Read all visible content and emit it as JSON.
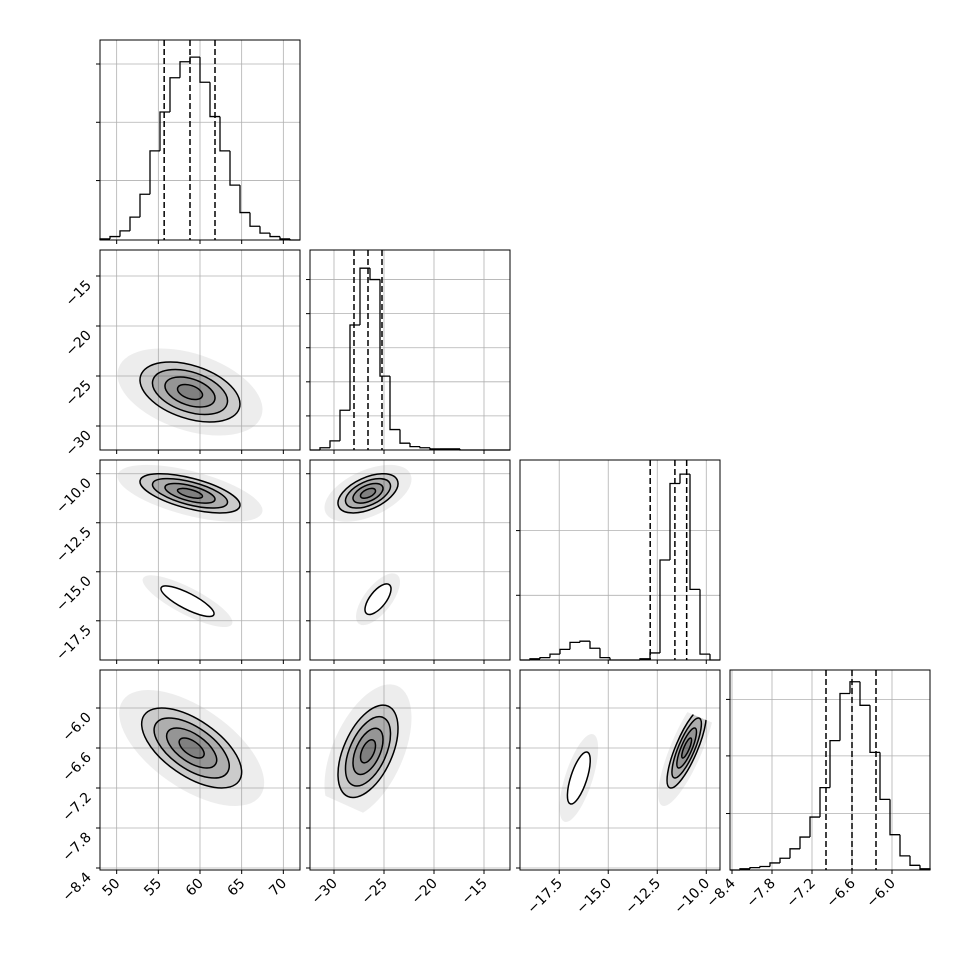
{
  "chart_data": {
    "type": "corner",
    "params": [
      {
        "lim": [
          48,
          72
        ],
        "ticks": [
          50,
          55,
          60,
          65,
          70
        ],
        "bins": [
          48,
          49.2,
          50.4,
          51.6,
          52.8,
          54,
          55.2,
          56.4,
          57.6,
          58.8,
          60,
          61.2,
          62.4,
          63.6,
          64.8,
          66,
          67.2,
          68.4,
          69.6,
          70.8,
          72
        ],
        "counts": [
          1,
          3,
          8,
          20,
          40,
          78,
          112,
          142,
          156,
          160,
          138,
          108,
          78,
          48,
          24,
          12,
          6,
          3,
          1,
          0
        ],
        "hist_ylim": [
          0,
          175
        ],
        "hist_yticks": [
          52,
          103,
          154
        ],
        "quantiles": [
          55.7,
          58.8,
          61.8
        ]
      },
      {
        "lim": [
          -32.4,
          -12.4
        ],
        "ticks": [
          {
            "value": -30,
            "label": "−30"
          },
          {
            "value": -25,
            "label": "−25"
          },
          {
            "value": -20,
            "label": "−20"
          },
          {
            "value": -15,
            "label": "−15"
          }
        ],
        "bins": [
          -32.4,
          -31.4,
          -30.4,
          -29.4,
          -28.4,
          -27.4,
          -26.4,
          -25.4,
          -24.4,
          -23.4,
          -22.4,
          -21.4,
          -20.4,
          -19.4,
          -18.4,
          -17.4,
          -16.4,
          -15.4,
          -14.4,
          -13.4,
          -12.4
        ],
        "counts": [
          0,
          2,
          8,
          35,
          110,
          160,
          150,
          65,
          18,
          6,
          3,
          2,
          1,
          1,
          1,
          0,
          0,
          0,
          0,
          0
        ],
        "hist_ylim": [
          0,
          176
        ],
        "hist_yticks": [
          30,
          60,
          90,
          120,
          150
        ],
        "quantiles": [
          -28.0,
          -26.6,
          -25.2
        ]
      },
      {
        "lim": [
          -19.5,
          -9.3
        ],
        "ticks": [
          {
            "value": -17.5,
            "label": "−17.5"
          },
          {
            "value": -15,
            "label": "−15.0"
          },
          {
            "value": -12.5,
            "label": "−12.5"
          },
          {
            "value": -10,
            "label": "−10.0"
          }
        ],
        "bins": [
          -19.5,
          -18.99,
          -18.48,
          -17.97,
          -17.46,
          -16.95,
          -16.44,
          -15.93,
          -15.42,
          -14.91,
          -14.4,
          -13.89,
          -13.38,
          -12.87,
          -12.36,
          -11.85,
          -11.34,
          -10.83,
          -10.32,
          -9.81,
          -9.3
        ],
        "counts": [
          0,
          1,
          2,
          5,
          9,
          15,
          16,
          10,
          2,
          0,
          0,
          0,
          1,
          6,
          85,
          150,
          158,
          60,
          5,
          0
        ],
        "hist_ylim": [
          0,
          170
        ],
        "hist_yticks": [
          55,
          110
        ],
        "quantiles": [
          -12.86,
          -11.6,
          -11.0
        ]
      },
      {
        "lim": [
          -8.43,
          -5.43
        ],
        "ticks": [
          {
            "value": -8.4,
            "label": "−8.4"
          },
          {
            "value": -7.8,
            "label": "−7.8"
          },
          {
            "value": -7.2,
            "label": "−7.2"
          },
          {
            "value": -6.6,
            "label": "−6.6"
          },
          {
            "value": -6.0,
            "label": "−6.0"
          }
        ],
        "bins": [
          -8.43,
          -8.28,
          -8.13,
          -7.98,
          -7.83,
          -7.68,
          -7.53,
          -7.38,
          -7.23,
          -7.08,
          -6.93,
          -6.78,
          -6.63,
          -6.48,
          -6.33,
          -6.18,
          -6.03,
          -5.88,
          -5.73,
          -5.58,
          -5.43
        ],
        "counts": [
          0,
          1,
          2,
          3,
          6,
          10,
          18,
          28,
          45,
          70,
          110,
          150,
          160,
          140,
          100,
          60,
          30,
          12,
          4,
          1
        ],
        "hist_ylim": [
          0,
          170
        ],
        "hist_yticks": [
          48,
          97,
          145
        ],
        "quantiles": [
          -6.99,
          -6.6,
          -6.24
        ]
      }
    ],
    "pairs": [
      {
        "x": 0,
        "y": 1,
        "clusters": [
          {
            "center": [
              58.8,
              -26.6
            ],
            "cov": [
              9,
              -1.8,
              2.25
            ],
            "levels": [
              0.5,
              1,
              1.5,
              2
            ]
          }
        ]
      },
      {
        "x": 0,
        "y": 2,
        "clusters": [
          {
            "center": [
              58.8,
              -11.0
            ],
            "cov": [
              9,
              -0.9,
              0.25
            ],
            "levels": [
              0.5,
              1,
              1.5,
              2
            ]
          },
          {
            "center": [
              58.5,
              -16.5
            ],
            "cov": [
              6,
              -1.2,
              0.36
            ],
            "levels": [
              1.3
            ]
          }
        ]
      },
      {
        "x": 1,
        "y": 2,
        "clusters": [
          {
            "center": [
              -26.6,
              -11.0
            ],
            "cov": [
              2.25,
              0.375,
              0.25
            ],
            "levels": [
              0.5,
              1,
              1.5,
              2
            ]
          },
          {
            "center": [
              -25.6,
              -16.4
            ],
            "cov": [
              1,
              0.4,
              0.36
            ],
            "levels": [
              1.3
            ]
          }
        ]
      },
      {
        "x": 0,
        "y": 3,
        "clusters": [
          {
            "center": [
              59,
              -6.6
            ],
            "cov": [
              9,
              -0.54,
              0.09
            ],
            "levels": [
              0.5,
              1,
              1.5,
              2
            ]
          }
        ]
      },
      {
        "x": 1,
        "y": 3,
        "clusters": [
          {
            "center": [
              -26.6,
              -6.65
            ],
            "cov": [
              2.25,
              0.26,
              0.12
            ],
            "levels": [
              0.5,
              1,
              1.5,
              2
            ]
          }
        ]
      },
      {
        "x": 2,
        "y": 3,
        "clusters": [
          {
            "center": [
              -11.0,
              -6.6
            ],
            "cov": [
              0.25,
              0.12,
              0.09
            ],
            "levels": [
              0.5,
              1,
              1.5,
              2
            ]
          },
          {
            "center": [
              -16.5,
              -7.05
            ],
            "cov": [
              0.2,
              0.09,
              0.09
            ],
            "levels": [
              1.3
            ]
          }
        ]
      }
    ]
  }
}
